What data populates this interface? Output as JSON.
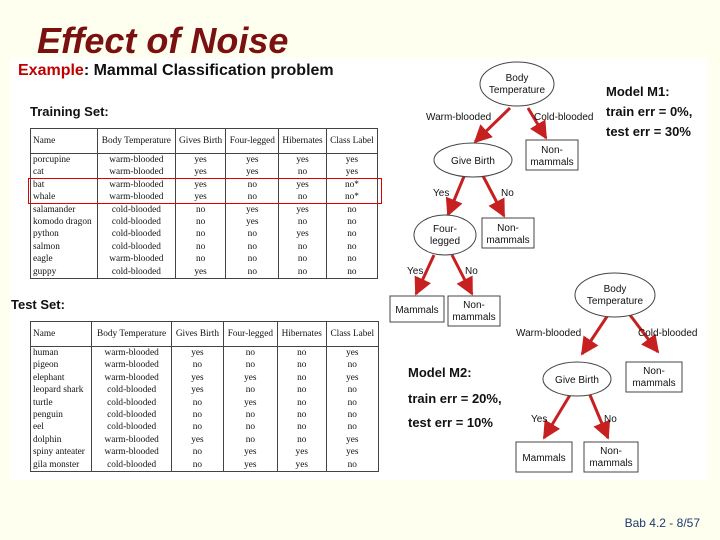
{
  "slide": {
    "title": "Effect of Noise",
    "footer": "Bab 4.2 - 8/57"
  },
  "example": {
    "prefix": "Example",
    "rest": ": Mammal Classification problem"
  },
  "training": {
    "label": "Training Set:",
    "headers": [
      "Name",
      "Body Temperature",
      "Gives Birth",
      "Four-legged",
      "Hibernates",
      "Class Label"
    ],
    "rows": [
      [
        "porcupine",
        "warm-blooded",
        "yes",
        "yes",
        "yes",
        "yes"
      ],
      [
        "cat",
        "warm-blooded",
        "yes",
        "yes",
        "no",
        "yes"
      ],
      [
        "bat",
        "warm-blooded",
        "yes",
        "no",
        "yes",
        "no*"
      ],
      [
        "whale",
        "warm-blooded",
        "yes",
        "no",
        "no",
        "no*"
      ],
      [
        "salamander",
        "cold-blooded",
        "no",
        "yes",
        "yes",
        "no"
      ],
      [
        "komodo dragon",
        "cold-blooded",
        "no",
        "yes",
        "no",
        "no"
      ],
      [
        "python",
        "cold-blooded",
        "no",
        "no",
        "yes",
        "no"
      ],
      [
        "salmon",
        "cold-blooded",
        "no",
        "no",
        "no",
        "no"
      ],
      [
        "eagle",
        "warm-blooded",
        "no",
        "no",
        "no",
        "no"
      ],
      [
        "guppy",
        "cold-blooded",
        "yes",
        "no",
        "no",
        "no"
      ]
    ]
  },
  "test": {
    "label": "Test Set:",
    "headers": [
      "Name",
      "Body Temperature",
      "Gives Birth",
      "Four-legged",
      "Hibernates",
      "Class Label"
    ],
    "rows": [
      [
        "human",
        "warm-blooded",
        "yes",
        "no",
        "no",
        "yes"
      ],
      [
        "pigeon",
        "warm-blooded",
        "no",
        "no",
        "no",
        "no"
      ],
      [
        "elephant",
        "warm-blooded",
        "yes",
        "yes",
        "no",
        "yes"
      ],
      [
        "leopard shark",
        "cold-blooded",
        "yes",
        "no",
        "no",
        "no"
      ],
      [
        "turtle",
        "cold-blooded",
        "no",
        "yes",
        "no",
        "no"
      ],
      [
        "penguin",
        "cold-blooded",
        "no",
        "no",
        "no",
        "no"
      ],
      [
        "eel",
        "cold-blooded",
        "no",
        "no",
        "no",
        "no"
      ],
      [
        "dolphin",
        "warm-blooded",
        "yes",
        "no",
        "no",
        "yes"
      ],
      [
        "spiny anteater",
        "warm-blooded",
        "no",
        "yes",
        "yes",
        "yes"
      ],
      [
        "gila monster",
        "cold-blooded",
        "no",
        "yes",
        "yes",
        "no"
      ]
    ]
  },
  "model1": {
    "name": "Model M1:",
    "train_err": "train err = 0%,",
    "test_err": "test err = 30%",
    "nodes": {
      "root": [
        "Body",
        "Temperature"
      ],
      "give_birth": [
        "Give Birth"
      ],
      "non_mammals_1": [
        "Non-",
        "mammals"
      ],
      "four_legged": [
        "Four-",
        "legged"
      ],
      "non_mammals_2": [
        "Non-",
        "mammals"
      ],
      "mammals": [
        "Mammals"
      ],
      "non_mammals_3": [
        "Non-",
        "mammals"
      ]
    },
    "edges": {
      "warm": "Warm-blooded",
      "cold": "Cold-blooded",
      "yes1": "Yes",
      "no1": "No",
      "yes2": "Yes",
      "no2": "No"
    }
  },
  "model2": {
    "name": "Model M2:",
    "train_err": "train err = 20%,",
    "test_err": "test err = 10%",
    "nodes": {
      "root": [
        "Body",
        "Temperature"
      ],
      "give_birth": [
        "Give Birth"
      ],
      "non_mammals_1": [
        "Non-",
        "mammals"
      ],
      "mammals": [
        "Mammals"
      ],
      "non_mammals_2": [
        "Non-",
        "mammals"
      ]
    },
    "edges": {
      "warm": "Warm-blooded",
      "cold": "Cold-blooded",
      "yes": "Yes",
      "no": "No"
    }
  },
  "colors": {
    "title": "#7a1010",
    "example_accent": "#c00000",
    "arrow": "#c62020",
    "highlight_box": "#e00000",
    "footer": "#1f3a70"
  }
}
